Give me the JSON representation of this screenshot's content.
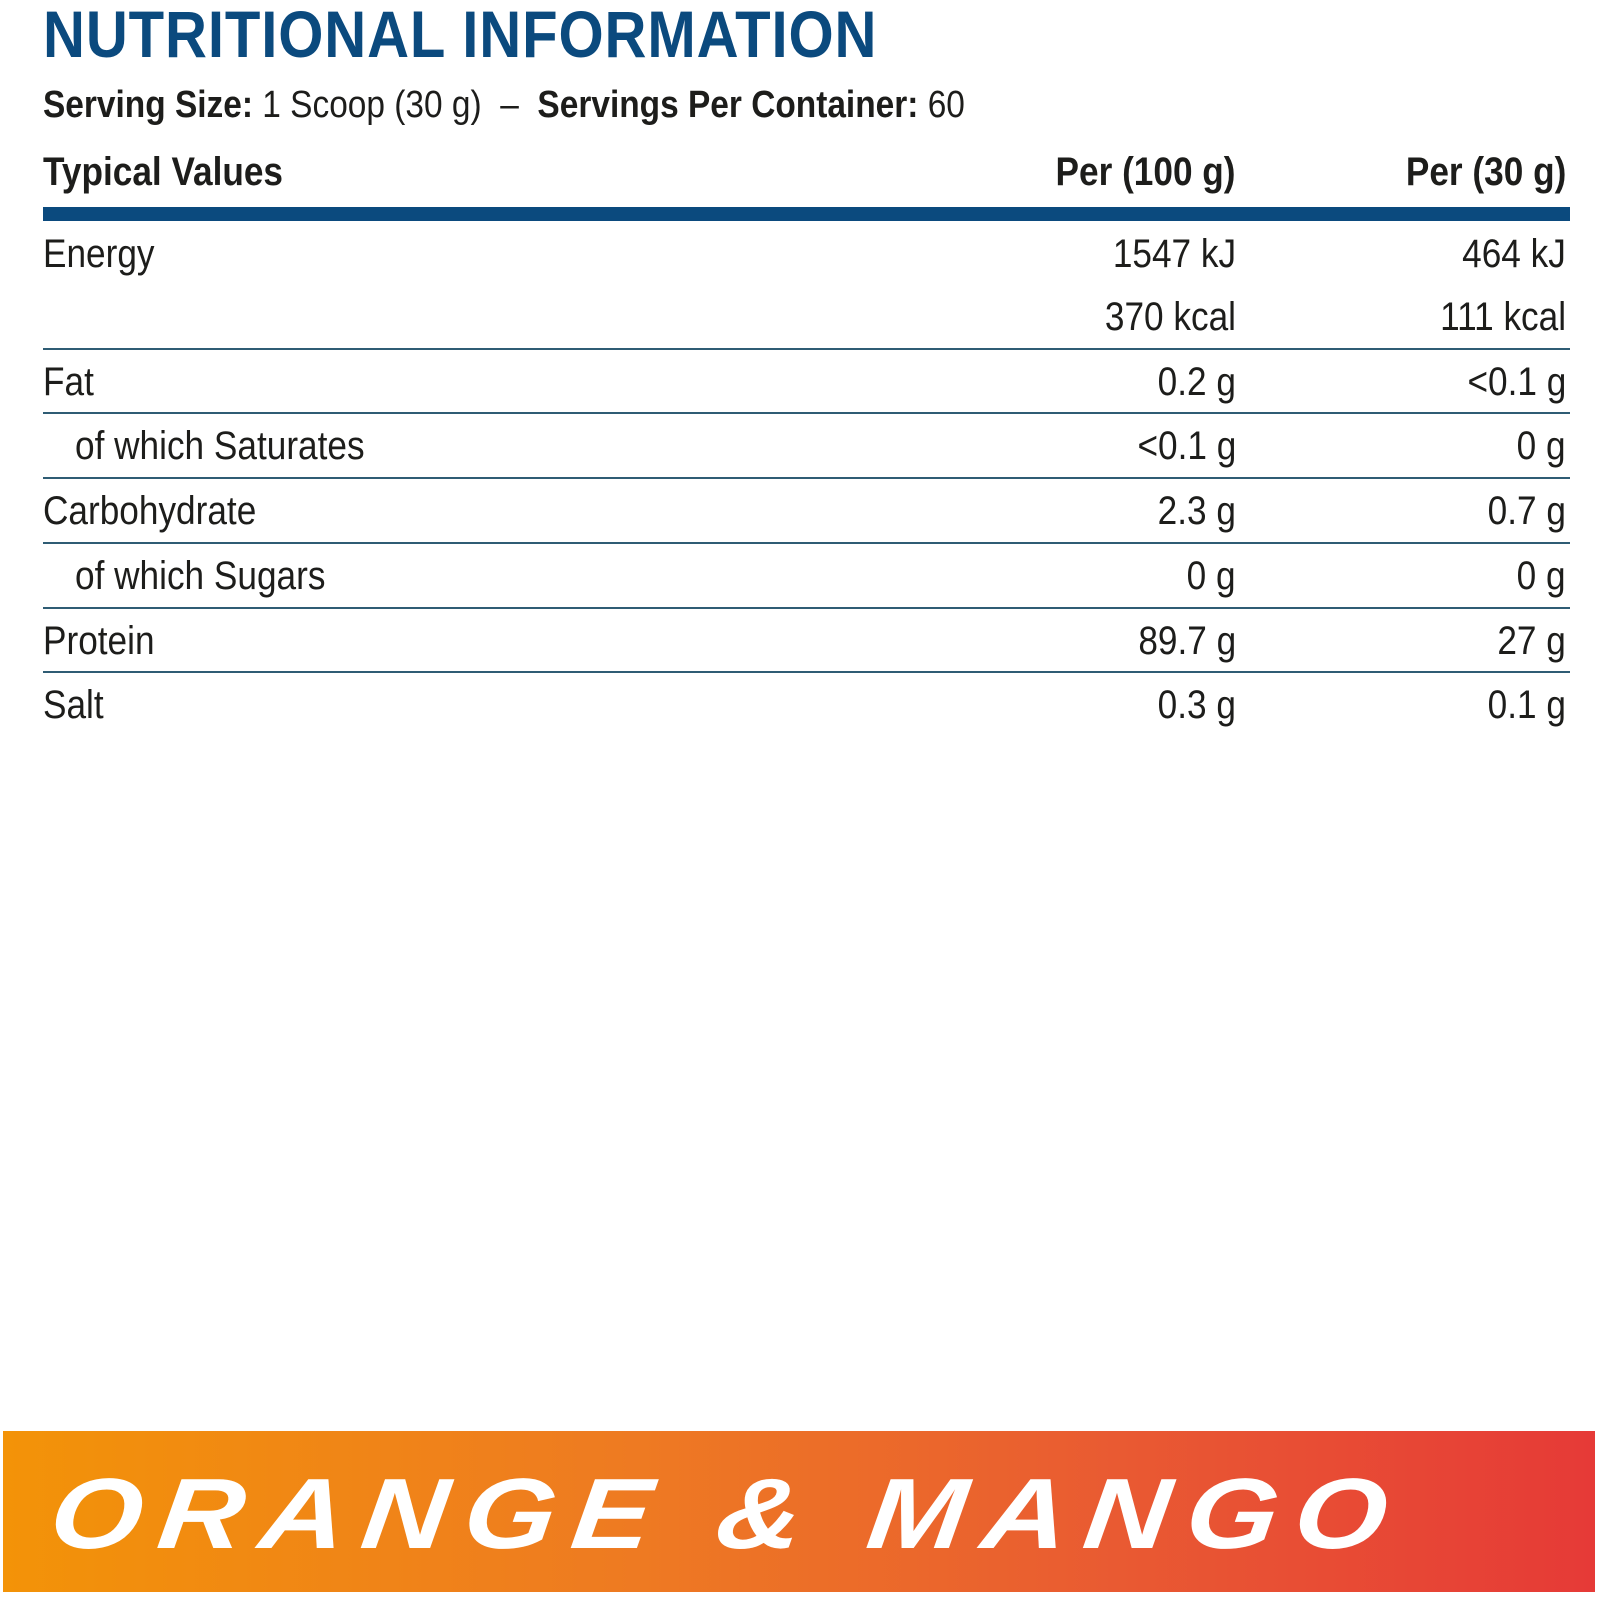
{
  "title": "NUTRITIONAL INFORMATION",
  "serving": {
    "size_label": "Serving Size:",
    "size_value": "1 Scoop (30 g)",
    "separator": "–",
    "per_container_label": "Servings Per Container:",
    "per_container_value": "60"
  },
  "table": {
    "headers": [
      "Typical Values",
      "Per (100 g)",
      "Per (30 g)"
    ],
    "rows": [
      {
        "label": "Energy",
        "per100": "1547 kJ",
        "per30": "464 kJ"
      },
      {
        "label": "",
        "per100": "370 kcal",
        "per30": "111 kcal"
      },
      {
        "label": "Fat",
        "per100": "0.2 g",
        "per30": "<0.1 g"
      },
      {
        "label": "of which Saturates",
        "per100": "<0.1 g",
        "per30": "0 g"
      },
      {
        "label": "Carbohydrate",
        "per100": "2.3 g",
        "per30": "0.7 g"
      },
      {
        "label": "of which Sugars",
        "per100": "0 g",
        "per30": "0 g"
      },
      {
        "label": "Protein",
        "per100": "89.7 g",
        "per30": "27 g"
      },
      {
        "label": "Salt",
        "per100": "0.3 g",
        "per30": "0.1 g"
      }
    ]
  },
  "flavor": "ORANGE & MANGO",
  "colors": {
    "brand_blue": "#0b4a7e",
    "banner_start": "#f39308",
    "banner_end": "#e63a37"
  }
}
